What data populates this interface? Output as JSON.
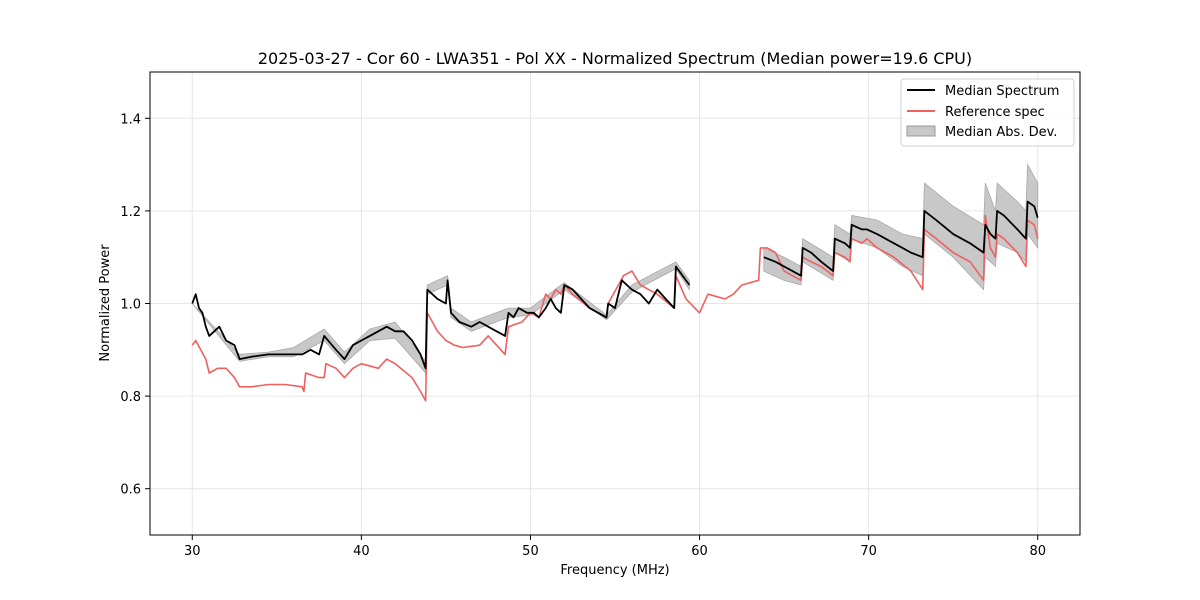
{
  "chart_data": {
    "type": "line",
    "title": "2025-03-27 - Cor 60 - LWA351 - Pol XX - Normalized Spectrum (Median power=19.6 CPU)",
    "xlabel": "Frequency (MHz)",
    "ylabel": "Normalized Power",
    "xlim": [
      27.5,
      82.5
    ],
    "ylim": [
      0.5,
      1.5
    ],
    "xticks": [
      30,
      40,
      50,
      60,
      70,
      80
    ],
    "yticks": [
      0.6,
      0.8,
      1.0,
      1.2,
      1.4
    ],
    "xtick_labels": [
      "30",
      "40",
      "50",
      "60",
      "70",
      "80"
    ],
    "ytick_labels": [
      "0.6",
      "0.8",
      "1.0",
      "1.2",
      "1.4"
    ],
    "grid": true,
    "legend_position": "top-right",
    "series": [
      {
        "name": "Median Spectrum",
        "color": "#000000",
        "segments": [
          [
            [
              30.0,
              1.0
            ],
            [
              30.2,
              1.02
            ],
            [
              30.4,
              0.99
            ],
            [
              30.6,
              0.98
            ],
            [
              30.8,
              0.95
            ],
            [
              31.0,
              0.93
            ],
            [
              31.3,
              0.94
            ],
            [
              31.6,
              0.95
            ],
            [
              32.0,
              0.92
            ],
            [
              32.5,
              0.91
            ],
            [
              32.8,
              0.88
            ],
            [
              33.5,
              0.885
            ],
            [
              34.5,
              0.89
            ],
            [
              35.5,
              0.89
            ],
            [
              36.5,
              0.89
            ],
            [
              37.0,
              0.9
            ],
            [
              37.5,
              0.89
            ],
            [
              37.8,
              0.93
            ],
            [
              38.5,
              0.9
            ],
            [
              39.0,
              0.88
            ],
            [
              39.5,
              0.91
            ],
            [
              40.0,
              0.92
            ],
            [
              40.5,
              0.93
            ],
            [
              41.0,
              0.94
            ],
            [
              41.5,
              0.95
            ],
            [
              42.0,
              0.94
            ],
            [
              42.5,
              0.94
            ],
            [
              43.0,
              0.92
            ],
            [
              43.5,
              0.89
            ],
            [
              43.8,
              0.86
            ],
            [
              43.9,
              1.03
            ],
            [
              44.5,
              1.01
            ],
            [
              45.0,
              1.0
            ],
            [
              45.1,
              1.05
            ],
            [
              45.3,
              0.98
            ],
            [
              45.8,
              0.96
            ],
            [
              46.5,
              0.95
            ],
            [
              47.0,
              0.96
            ],
            [
              47.5,
              0.95
            ],
            [
              48.0,
              0.94
            ],
            [
              48.5,
              0.93
            ],
            [
              48.7,
              0.98
            ],
            [
              49.0,
              0.97
            ],
            [
              49.3,
              0.99
            ],
            [
              49.8,
              0.98
            ],
            [
              50.2,
              0.98
            ],
            [
              50.5,
              0.97
            ],
            [
              50.9,
              0.99
            ],
            [
              51.2,
              1.01
            ],
            [
              51.5,
              0.99
            ],
            [
              51.8,
              0.98
            ],
            [
              52.0,
              1.04
            ],
            [
              52.5,
              1.03
            ],
            [
              53.0,
              1.01
            ],
            [
              53.5,
              0.99
            ],
            [
              54.0,
              0.98
            ],
            [
              54.5,
              0.97
            ],
            [
              54.6,
              1.0
            ],
            [
              55.0,
              0.99
            ],
            [
              55.4,
              1.05
            ],
            [
              56.0,
              1.03
            ],
            [
              56.5,
              1.02
            ],
            [
              57.0,
              1.0
            ],
            [
              57.5,
              1.03
            ],
            [
              58.0,
              1.01
            ],
            [
              58.5,
              0.99
            ],
            [
              58.6,
              1.08
            ],
            [
              59.0,
              1.06
            ],
            [
              59.4,
              1.04
            ]
          ],
          [
            [
              63.8,
              1.1
            ],
            [
              64.5,
              1.09
            ],
            [
              65.0,
              1.08
            ],
            [
              65.5,
              1.07
            ],
            [
              66.0,
              1.06
            ],
            [
              66.1,
              1.12
            ],
            [
              66.6,
              1.11
            ],
            [
              67.2,
              1.09
            ],
            [
              67.9,
              1.07
            ],
            [
              68.0,
              1.14
            ],
            [
              68.6,
              1.13
            ],
            [
              68.9,
              1.12
            ],
            [
              69.0,
              1.17
            ],
            [
              69.6,
              1.16
            ],
            [
              69.9,
              1.16
            ],
            [
              70.5,
              1.15
            ],
            [
              71.0,
              1.14
            ],
            [
              71.5,
              1.13
            ],
            [
              72.0,
              1.12
            ],
            [
              72.5,
              1.11
            ],
            [
              73.2,
              1.1
            ],
            [
              73.3,
              1.2
            ],
            [
              74.0,
              1.18
            ],
            [
              75.0,
              1.15
            ],
            [
              76.0,
              1.13
            ],
            [
              76.8,
              1.11
            ],
            [
              76.9,
              1.17
            ],
            [
              77.2,
              1.15
            ],
            [
              77.5,
              1.14
            ],
            [
              77.6,
              1.2
            ],
            [
              78.0,
              1.19
            ],
            [
              78.8,
              1.16
            ],
            [
              79.3,
              1.14
            ],
            [
              79.4,
              1.22
            ],
            [
              79.8,
              1.21
            ],
            [
              80.0,
              1.185
            ]
          ]
        ]
      },
      {
        "name": "Reference spec",
        "color": "#f06060",
        "segments": [
          [
            [
              30.0,
              0.91
            ],
            [
              30.2,
              0.92
            ],
            [
              30.5,
              0.9
            ],
            [
              30.8,
              0.88
            ],
            [
              31.0,
              0.85
            ],
            [
              31.5,
              0.86
            ],
            [
              32.0,
              0.86
            ],
            [
              32.5,
              0.84
            ],
            [
              32.8,
              0.82
            ],
            [
              33.5,
              0.82
            ],
            [
              34.5,
              0.825
            ],
            [
              35.5,
              0.825
            ],
            [
              36.5,
              0.82
            ],
            [
              36.6,
              0.81
            ],
            [
              36.7,
              0.85
            ],
            [
              37.5,
              0.84
            ],
            [
              37.8,
              0.84
            ],
            [
              37.9,
              0.87
            ],
            [
              38.5,
              0.86
            ],
            [
              39.0,
              0.84
            ],
            [
              39.5,
              0.86
            ],
            [
              40.0,
              0.87
            ],
            [
              41.0,
              0.86
            ],
            [
              41.5,
              0.88
            ],
            [
              42.0,
              0.87
            ],
            [
              43.0,
              0.84
            ],
            [
              43.5,
              0.81
            ],
            [
              43.8,
              0.79
            ],
            [
              43.9,
              0.98
            ],
            [
              44.5,
              0.94
            ],
            [
              45.0,
              0.92
            ],
            [
              45.5,
              0.91
            ],
            [
              46.0,
              0.905
            ],
            [
              47.0,
              0.91
            ],
            [
              47.5,
              0.93
            ],
            [
              48.0,
              0.91
            ],
            [
              48.5,
              0.89
            ],
            [
              48.7,
              0.95
            ],
            [
              49.5,
              0.96
            ],
            [
              50.0,
              0.98
            ],
            [
              50.5,
              0.97
            ],
            [
              50.9,
              1.02
            ],
            [
              51.2,
              1.01
            ],
            [
              51.5,
              1.03
            ],
            [
              51.8,
              1.02
            ],
            [
              52.0,
              1.04
            ],
            [
              52.5,
              1.02
            ],
            [
              53.5,
              0.99
            ],
            [
              54.5,
              0.97
            ],
            [
              54.6,
              1.0
            ],
            [
              55.5,
              1.06
            ],
            [
              56.0,
              1.07
            ],
            [
              56.5,
              1.04
            ],
            [
              57.5,
              1.02
            ],
            [
              58.5,
              0.99
            ],
            [
              58.6,
              1.06
            ],
            [
              59.2,
              1.01
            ],
            [
              60.0,
              0.98
            ],
            [
              60.5,
              1.02
            ],
            [
              61.5,
              1.01
            ],
            [
              62.0,
              1.02
            ],
            [
              62.5,
              1.04
            ],
            [
              63.5,
              1.05
            ],
            [
              63.6,
              1.12
            ],
            [
              64.0,
              1.12
            ],
            [
              64.5,
              1.11
            ],
            [
              65.0,
              1.07
            ],
            [
              65.5,
              1.06
            ],
            [
              66.0,
              1.05
            ],
            [
              66.1,
              1.1
            ],
            [
              66.6,
              1.09
            ],
            [
              67.2,
              1.08
            ],
            [
              67.9,
              1.06
            ],
            [
              68.0,
              1.11
            ],
            [
              68.6,
              1.1
            ],
            [
              68.9,
              1.09
            ],
            [
              69.0,
              1.14
            ],
            [
              69.6,
              1.13
            ],
            [
              69.9,
              1.14
            ],
            [
              70.5,
              1.12
            ],
            [
              71.5,
              1.1
            ],
            [
              72.5,
              1.07
            ],
            [
              73.2,
              1.03
            ],
            [
              73.3,
              1.16
            ],
            [
              74.0,
              1.14
            ],
            [
              75.0,
              1.11
            ],
            [
              76.0,
              1.09
            ],
            [
              76.8,
              1.05
            ],
            [
              76.9,
              1.19
            ],
            [
              77.2,
              1.12
            ],
            [
              77.5,
              1.1
            ],
            [
              77.6,
              1.15
            ],
            [
              78.0,
              1.14
            ],
            [
              78.8,
              1.11
            ],
            [
              79.3,
              1.08
            ],
            [
              79.4,
              1.18
            ],
            [
              79.8,
              1.17
            ],
            [
              80.0,
              1.14
            ]
          ]
        ]
      },
      {
        "name": "Median Abs. Dev.",
        "type": "band",
        "color": "#c8c8c8",
        "segments": [
          [
            [
              30.0,
              1.0,
              1.0
            ],
            [
              32.8,
              0.875,
              0.89
            ],
            [
              34.5,
              0.885,
              0.895
            ],
            [
              36.0,
              0.885,
              0.905
            ],
            [
              37.8,
              0.92,
              0.945
            ],
            [
              39.0,
              0.87,
              0.895
            ],
            [
              40.5,
              0.92,
              0.945
            ],
            [
              42.0,
              0.925,
              0.96
            ],
            [
              43.8,
              0.85,
              0.875
            ],
            [
              43.9,
              1.02,
              1.04
            ],
            [
              45.1,
              1.04,
              1.06
            ],
            [
              45.3,
              0.97,
              0.99
            ],
            [
              46.5,
              0.94,
              0.96
            ],
            [
              48.7,
              0.97,
              0.99
            ],
            [
              50.0,
              0.975,
              0.99
            ],
            [
              52.0,
              1.03,
              1.045
            ],
            [
              54.5,
              0.965,
              0.975
            ],
            [
              56.0,
              1.025,
              1.04
            ],
            [
              58.6,
              1.075,
              1.09
            ],
            [
              59.4,
              1.03,
              1.05
            ]
          ],
          [
            [
              63.8,
              1.07,
              1.12
            ],
            [
              65.0,
              1.05,
              1.1
            ],
            [
              66.0,
              1.04,
              1.08
            ],
            [
              66.1,
              1.09,
              1.14
            ],
            [
              67.9,
              1.05,
              1.1
            ],
            [
              68.0,
              1.11,
              1.17
            ],
            [
              68.9,
              1.09,
              1.15
            ],
            [
              69.0,
              1.14,
              1.19
            ],
            [
              70.5,
              1.12,
              1.18
            ],
            [
              72.0,
              1.08,
              1.15
            ],
            [
              73.2,
              1.06,
              1.14
            ],
            [
              73.3,
              1.15,
              1.26
            ],
            [
              75.0,
              1.1,
              1.21
            ],
            [
              76.8,
              1.03,
              1.17
            ],
            [
              76.9,
              1.1,
              1.26
            ],
            [
              77.5,
              1.08,
              1.2
            ],
            [
              77.6,
              1.13,
              1.26
            ],
            [
              78.8,
              1.11,
              1.22
            ],
            [
              79.3,
              1.09,
              1.2
            ],
            [
              79.4,
              1.15,
              1.3
            ],
            [
              80.0,
              1.12,
              1.26
            ]
          ]
        ]
      }
    ]
  }
}
